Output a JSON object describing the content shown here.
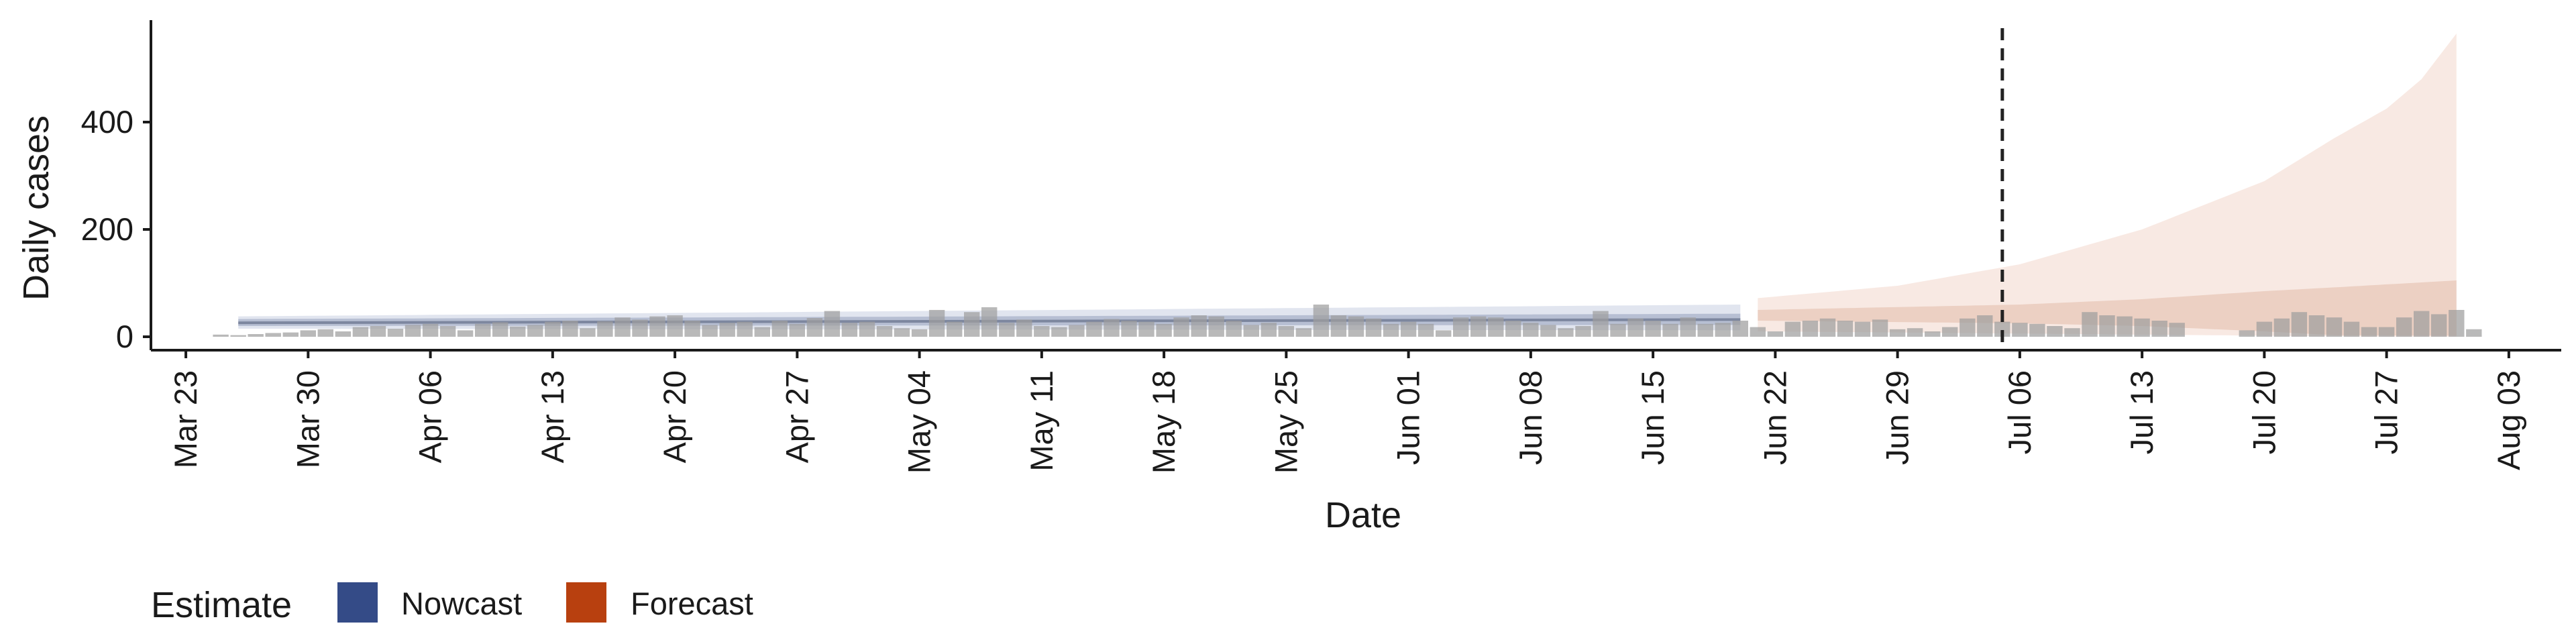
{
  "chart_data": {
    "type": "bar",
    "xlabel": "Date",
    "ylabel": "Daily cases",
    "ylim": [
      -25,
      590
    ],
    "xlim": [
      "2020-03-21",
      "2020-08-06"
    ],
    "y_ticks": [
      0,
      200,
      400
    ],
    "x_ticks": [
      "Mar 23",
      "Mar 30",
      "Apr 06",
      "Apr 13",
      "Apr 20",
      "Apr 27",
      "May 04",
      "May 11",
      "May 18",
      "May 25",
      "Jun 01",
      "Jun 08",
      "Jun 15",
      "Jun 22",
      "Jun 29",
      "Jul 06",
      "Jul 13",
      "Jul 20",
      "Jul 27",
      "Aug 03"
    ],
    "x_tick_dates": [
      "2020-03-23",
      "2020-03-30",
      "2020-04-06",
      "2020-04-13",
      "2020-04-20",
      "2020-04-27",
      "2020-05-04",
      "2020-05-11",
      "2020-05-18",
      "2020-05-25",
      "2020-06-01",
      "2020-06-08",
      "2020-06-15",
      "2020-06-22",
      "2020-06-29",
      "2020-07-06",
      "2020-07-13",
      "2020-07-20",
      "2020-07-27",
      "2020-08-03"
    ],
    "grid": false,
    "legend": {
      "position": "bottom-left",
      "title": "Estimate",
      "entries": [
        {
          "label": "Nowcast",
          "color": "#344b87"
        },
        {
          "label": "Forecast",
          "color": "#b8400f"
        }
      ]
    },
    "reference_line": {
      "date": "2020-07-05",
      "style": "dashed"
    },
    "reported_cases": {
      "start_date": "2020-03-25",
      "color": "#9e9e9e",
      "values": [
        4,
        3,
        5,
        7,
        8,
        12,
        14,
        10,
        18,
        20,
        15,
        22,
        24,
        20,
        12,
        24,
        27,
        19,
        22,
        28,
        30,
        16,
        29,
        36,
        32,
        38,
        40,
        30,
        22,
        26,
        28,
        18,
        30,
        24,
        35,
        48,
        26,
        28,
        20,
        16,
        14,
        50,
        28,
        46,
        55,
        26,
        32,
        20,
        18,
        22,
        28,
        33,
        30,
        28,
        24,
        36,
        40,
        38,
        30,
        22,
        26,
        20,
        16,
        60,
        40,
        38,
        34,
        24,
        28,
        24,
        12,
        36,
        38,
        36,
        30,
        26,
        22,
        16,
        20,
        48,
        24,
        34,
        30,
        24,
        36,
        24,
        26,
        30,
        18,
        10,
        28,
        30,
        34,
        30,
        28,
        32,
        14,
        16,
        10,
        18,
        34,
        40,
        28,
        26,
        24,
        20,
        16,
        46,
        40,
        38,
        34,
        30,
        26,
        0,
        0,
        0,
        12,
        28,
        34,
        46,
        40,
        36,
        28,
        18,
        18,
        36,
        48,
        42,
        50,
        14
      ]
    },
    "nowcast": {
      "start_date": "2020-03-26",
      "end_date": "2020-06-20",
      "median": [
        26,
        32
      ],
      "inner_band": [
        [
          20,
          33
        ],
        [
          22,
          43
        ]
      ],
      "outer_band": [
        [
          15,
          38
        ],
        [
          12,
          60
        ]
      ]
    },
    "forecast": {
      "start_date": "2020-06-21",
      "end_date": "2020-07-31",
      "inner_band": {
        "dates": [
          "2020-06-21",
          "2020-07-06",
          "2020-07-13",
          "2020-07-20",
          "2020-07-24",
          "2020-07-31"
        ],
        "lower": [
          30,
          25,
          20,
          10,
          3,
          2
        ],
        "upper": [
          50,
          60,
          70,
          85,
          92,
          105
        ]
      },
      "outer_band": {
        "dates": [
          "2020-06-21",
          "2020-06-29",
          "2020-07-06",
          "2020-07-13",
          "2020-07-20",
          "2020-07-24",
          "2020-07-27",
          "2020-07-29",
          "2020-07-31"
        ],
        "lower": [
          10,
          8,
          6,
          4,
          2,
          1,
          0,
          0,
          0
        ],
        "upper": [
          72,
          95,
          135,
          200,
          290,
          370,
          425,
          480,
          565
        ]
      }
    }
  }
}
